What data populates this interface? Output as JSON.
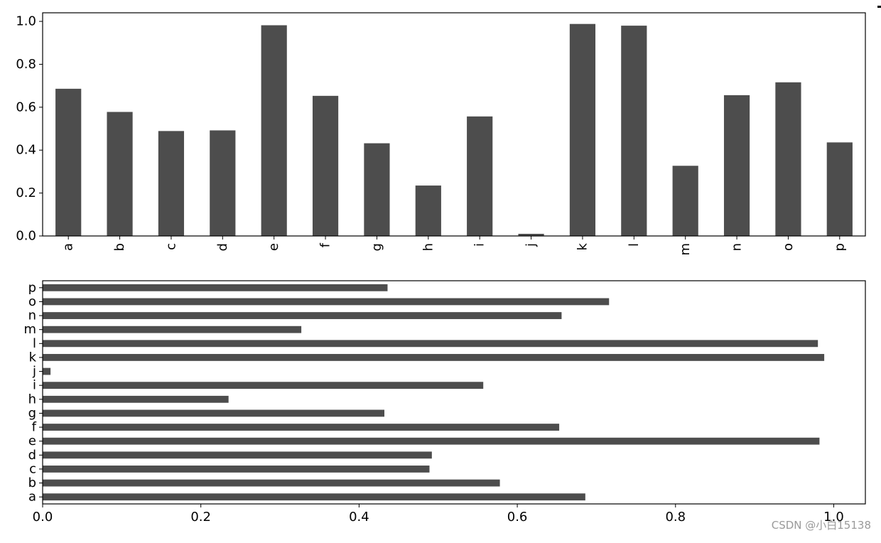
{
  "watermark": "CSDN @小白15138",
  "chart_data": [
    {
      "type": "bar",
      "orientation": "vertical",
      "categories": [
        "a",
        "b",
        "c",
        "d",
        "e",
        "f",
        "g",
        "h",
        "i",
        "j",
        "k",
        "l",
        "m",
        "n",
        "o",
        "p"
      ],
      "values": [
        0.686,
        0.578,
        0.489,
        0.492,
        0.982,
        0.653,
        0.432,
        0.235,
        0.557,
        0.01,
        0.988,
        0.98,
        0.327,
        0.656,
        0.716,
        0.436
      ],
      "color": "#4d4d4d",
      "title": "",
      "xlabel": "",
      "ylabel": "",
      "ylim": [
        0,
        1.04
      ],
      "yticks": [
        "0.0",
        "0.2",
        "0.4",
        "0.6",
        "0.8",
        "1.0"
      ],
      "grid": false
    },
    {
      "type": "bar",
      "orientation": "horizontal",
      "categories": [
        "a",
        "b",
        "c",
        "d",
        "e",
        "f",
        "g",
        "h",
        "i",
        "j",
        "k",
        "l",
        "m",
        "n",
        "o",
        "p"
      ],
      "values": [
        0.686,
        0.578,
        0.489,
        0.492,
        0.982,
        0.653,
        0.432,
        0.235,
        0.557,
        0.01,
        0.988,
        0.98,
        0.327,
        0.656,
        0.716,
        0.436
      ],
      "color": "#4d4d4d",
      "title": "",
      "xlabel": "",
      "ylabel": "",
      "xlim": [
        0,
        1.04
      ],
      "xticks": [
        "0.0",
        "0.2",
        "0.4",
        "0.6",
        "0.8",
        "1.0"
      ],
      "grid": false
    }
  ]
}
